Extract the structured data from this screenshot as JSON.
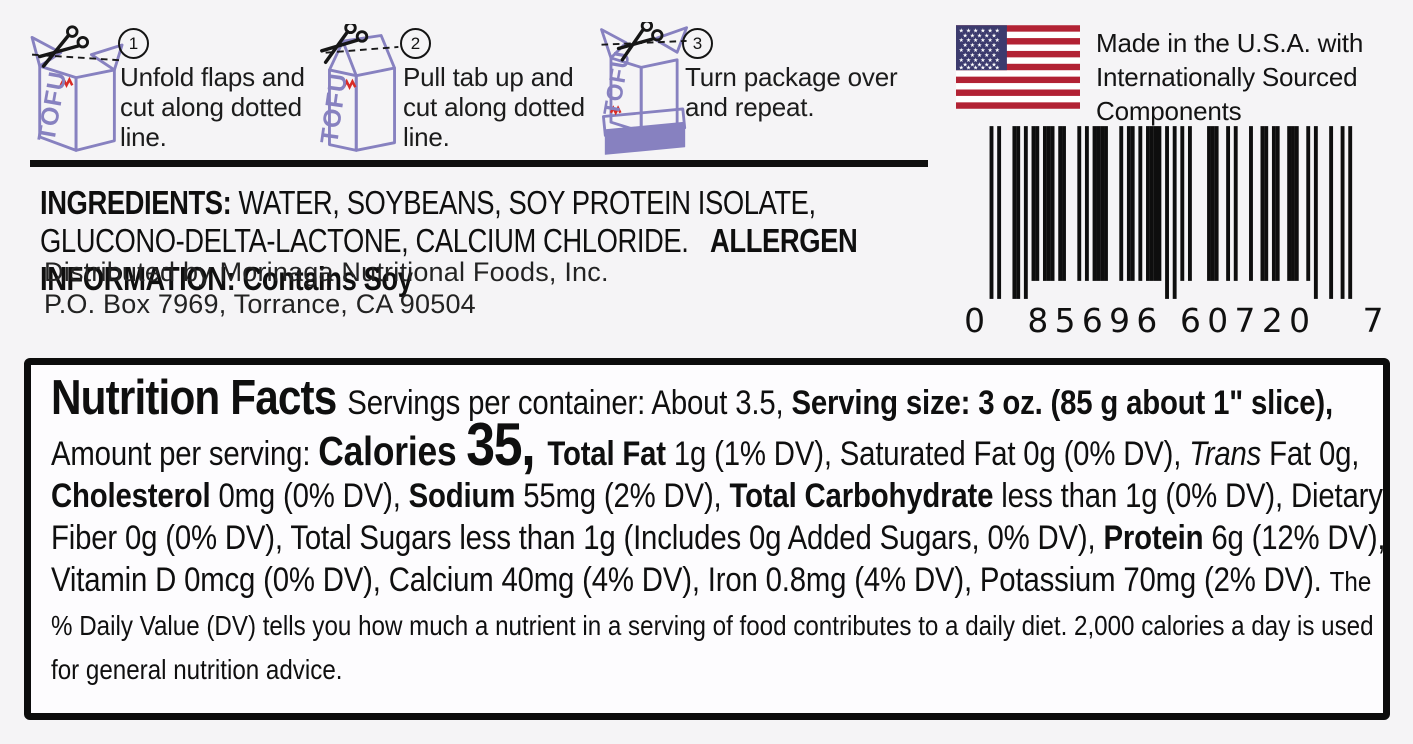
{
  "colors": {
    "background": "#f5f4f6",
    "ink": "#111111",
    "carton_purple": "#8781c0",
    "logo_red": "#d92b26",
    "flag_red": "#b22234",
    "flag_blue": "#3c3b6e"
  },
  "instructions": {
    "carton_label": "TOFU",
    "steps": [
      {
        "number": "1",
        "icon": "tofu-carton-cut-top-icon",
        "text": "Unfold flaps and cut along dotted line."
      },
      {
        "number": "2",
        "icon": "tofu-carton-pull-tab-icon",
        "text": "Pull tab up and cut along dotted line."
      },
      {
        "number": "3",
        "icon": "tofu-carton-flipped-icon",
        "text": "Turn package over and repeat."
      }
    ]
  },
  "origin": {
    "flag_icon": "us-flag-icon",
    "text": "Made in the U.S.A. with Internationally Sourced Components"
  },
  "barcode": {
    "full": "0 85696 60720 7",
    "left_digit": "0",
    "group1": "85696",
    "group2": "60720",
    "right_digit": "7"
  },
  "ingredients": {
    "label": "INGREDIENTS: ",
    "list": "WATER, SOYBEANS, SOY PROTEIN ISOLATE, GLUCONO-DELTA-LACTONE, CALCIUM CHLORIDE.",
    "allergen": "ALLERGEN INFORMATION: Contains Soy",
    "distributor": "Distributed by Morinaga Nutritional Foods, Inc.",
    "address": "P.O. Box 7969, Torrance, CA 90504"
  },
  "nutrition": {
    "segments": [
      {
        "style": "title",
        "text": "Nutrition Facts "
      },
      {
        "style": "reg",
        "text": "Servings per container: About 3.5, "
      },
      {
        "style": "bold",
        "text": "Serving size: 3 oz. (85 g about 1\" slice), "
      },
      {
        "style": "reg",
        "text": "Amount per serving: "
      },
      {
        "style": "calword",
        "text": "Calories "
      },
      {
        "style": "calnum",
        "text": "35, "
      },
      {
        "style": "bold",
        "text": "Total Fat "
      },
      {
        "style": "reg",
        "text": "1g (1% DV), Saturated Fat 0g (0% DV), "
      },
      {
        "style": "italic",
        "text": "Trans "
      },
      {
        "style": "reg",
        "text": "Fat 0g, "
      },
      {
        "style": "bold",
        "text": "Cholesterol "
      },
      {
        "style": "reg",
        "text": "0mg (0% DV), "
      },
      {
        "style": "bold",
        "text": "Sodium "
      },
      {
        "style": "reg",
        "text": "55mg (2% DV), "
      },
      {
        "style": "bold",
        "text": "Total Carbohydrate "
      },
      {
        "style": "reg",
        "text": "less than 1g (0% DV), Dietary Fiber 0g (0% DV), Total Sugars less than 1g (Includes 0g Added Sugars, 0% DV), "
      },
      {
        "style": "bold",
        "text": "Protein "
      },
      {
        "style": "reg",
        "text": "6g (12% DV), Vitamin D 0mcg (0% DV), Calcium 40mg (4% DV), Iron 0.8mg (4% DV), Potassium 70mg (2% DV). "
      },
      {
        "style": "footnote",
        "text": "The % Daily Value (DV) tells you how much a nutrient in a serving of food contributes to a daily diet. 2,000 calories a day is used for general nutrition advice."
      }
    ]
  }
}
